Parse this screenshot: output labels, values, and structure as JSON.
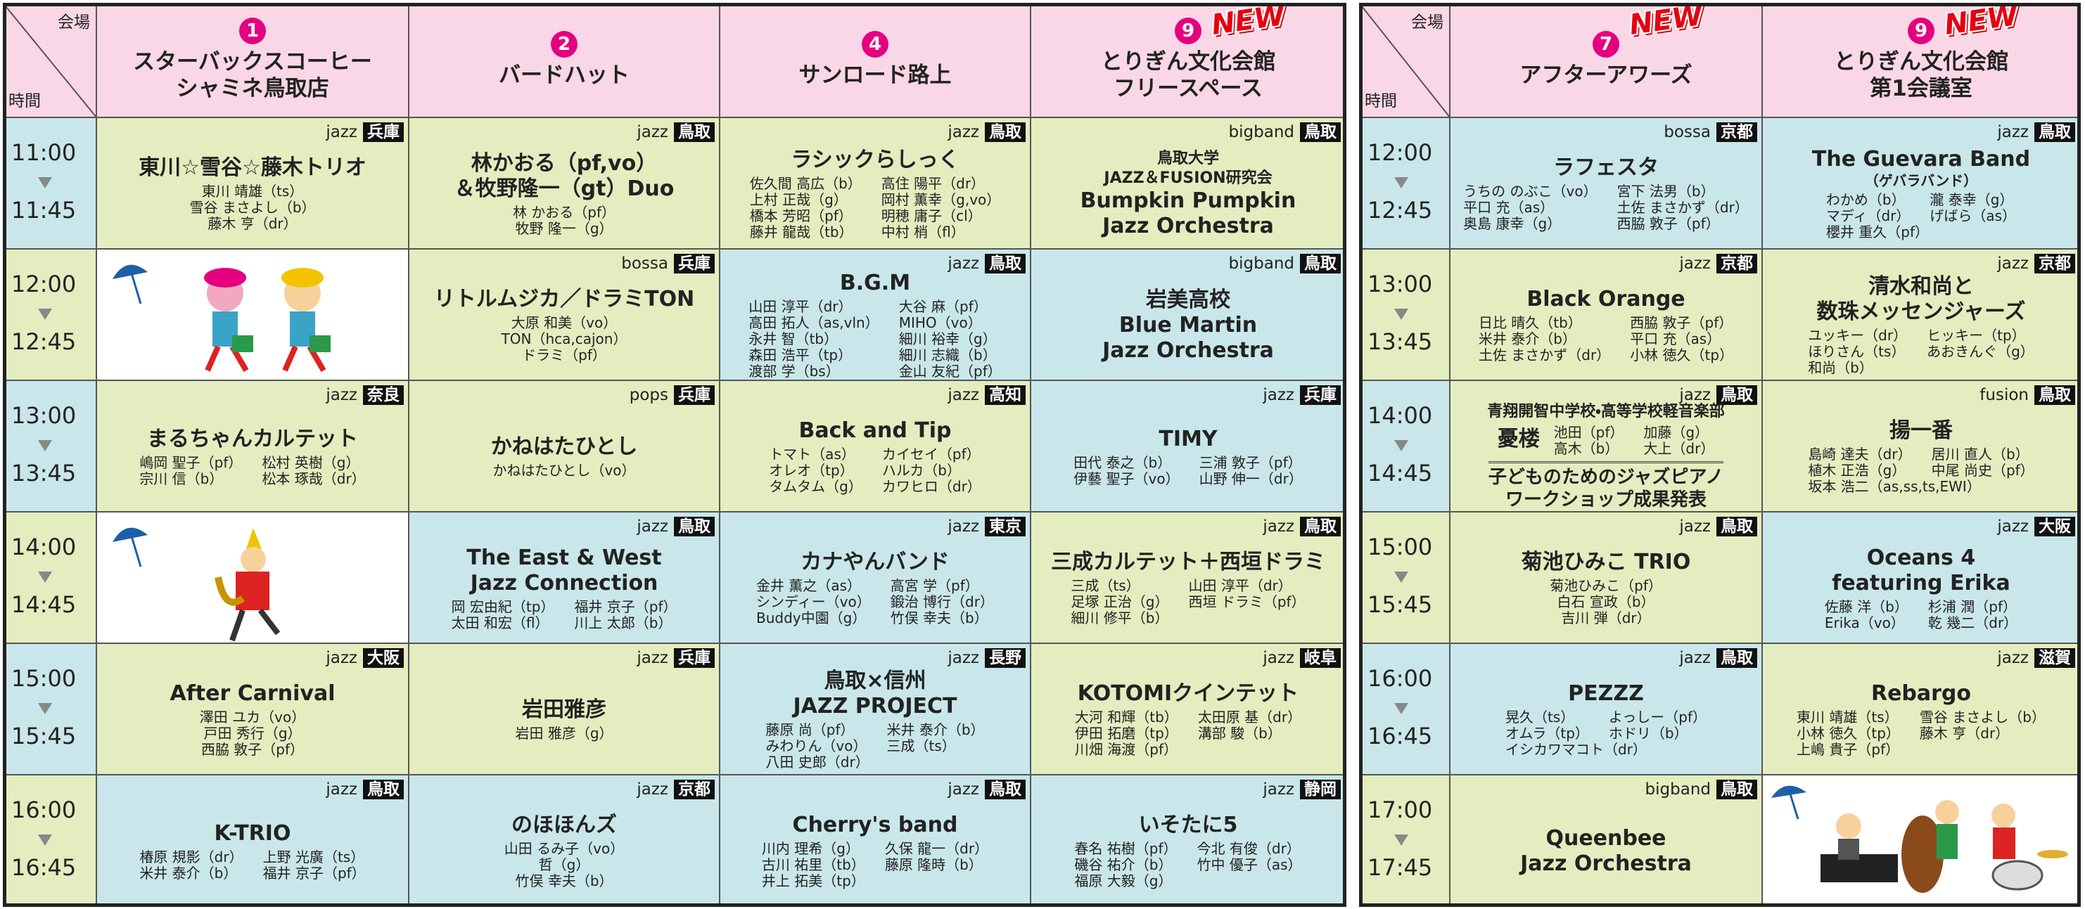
{
  "tables": [
    {
      "corner": {
        "venue": "会場",
        "time": "時間"
      },
      "venues": [
        {
          "number": "1",
          "name": [
            "スターバックスコーヒー",
            "シャミネ鳥取店"
          ]
        },
        {
          "number": "2",
          "name": [
            "バードハット"
          ]
        },
        {
          "number": "4",
          "name": [
            "サンロード路上"
          ]
        },
        {
          "number": "9",
          "name": [
            "とりぎん文化会館",
            "フリースペース"
          ],
          "new": "NEW"
        }
      ],
      "rows": [
        {
          "start": "11:00",
          "end": "11:45",
          "cells": [
            {
              "bg": "#e4edbf",
              "genre": "jazz",
              "pref": "兵庫",
              "title": [
                "東川☆雪谷☆藤木トリオ"
              ],
              "members": [
                [
                  "東川 靖雄（ts）"
                ],
                [
                  "雪谷 まさよし（b）"
                ],
                [
                  "藤木 亨（dr）"
                ]
              ]
            },
            {
              "bg": "#e4edbf",
              "genre": "jazz",
              "pref": "鳥取",
              "title": [
                "林かおる（pf,vo）",
                "＆牧野隆一（gt）Duo"
              ],
              "members": [
                [
                  "林 かおる（pf）"
                ],
                [
                  "牧野 隆一（g）"
                ]
              ]
            },
            {
              "bg": "#e4edbf",
              "genre": "jazz",
              "pref": "鳥取",
              "title": [
                "ラシックらしっく"
              ],
              "members": [
                [
                  "佐久間 高広（b）",
                  "高住 陽平（dr）"
                ],
                [
                  "上村 正哉（g）",
                  "岡村 薫幸（g,vo）"
                ],
                [
                  "橋本 芳昭（pf）",
                  "明穂 庸子（cl）"
                ],
                [
                  "藤井 龍哉（tb）",
                  "中村 梢（fl）"
                ]
              ]
            },
            {
              "bg": "#e4edbf",
              "genre": "bigband",
              "pref": "鳥取",
              "pre": [
                "鳥取大学",
                "JAZZ＆FUSION研究会"
              ],
              "title": [
                "Bumpkin Pumpkin",
                "Jazz Orchestra"
              ]
            }
          ]
        },
        {
          "start": "12:00",
          "end": "12:45",
          "cells": [
            null,
            {
              "bg": "#e4edbf",
              "genre": "bossa",
              "pref": "兵庫",
              "title": [
                "リトルムジカ／ドラミTON"
              ],
              "members": [
                [
                  "大原 和美（vo）"
                ],
                [
                  "TON（hca,cajon）"
                ],
                [
                  "ドラミ（pf）"
                ]
              ]
            },
            {
              "bg": "#c9e7ea",
              "genre": "jazz",
              "pref": "鳥取",
              "title": [
                "B.G.M"
              ],
              "members": [
                [
                  "山田 淳平（dr）",
                  "大谷 麻（pf）"
                ],
                [
                  "高田 拓人（as,vln）",
                  "MIHO（vo）"
                ],
                [
                  "永井 智（tb）",
                  "細川 裕幸（g）"
                ],
                [
                  "森田 浩平（tp）",
                  "細川 志織（b）"
                ],
                [
                  "渡部 学（bs）",
                  "金山 友紀（pf）"
                ]
              ]
            },
            {
              "bg": "#c9e7ea",
              "genre": "bigband",
              "pref": "鳥取",
              "title": [
                "岩美高校",
                "Blue Martin",
                "Jazz Orchestra"
              ]
            }
          ]
        },
        {
          "start": "13:00",
          "end": "13:45",
          "cells": [
            {
              "bg": "#e4edbf",
              "genre": "jazz",
              "pref": "奈良",
              "title": [
                "まるちゃんカルテット"
              ],
              "members": [
                [
                  "嶋岡 聖子（pf）",
                  "松村 英樹（g）"
                ],
                [
                  "宗川 信（b）",
                  "松本 琢哉（dr）"
                ]
              ]
            },
            {
              "bg": "#e4edbf",
              "genre": "pops",
              "pref": "兵庫",
              "title": [
                "かねはたひとし"
              ],
              "members": [
                [
                  "かねはたひとし（vo）"
                ]
              ]
            },
            {
              "bg": "#e4edbf",
              "genre": "jazz",
              "pref": "高知",
              "title": [
                "Back and Tip"
              ],
              "members": [
                [
                  "トマト（as）",
                  "カイセイ（pf）"
                ],
                [
                  "オレオ（tp）",
                  "ハルカ（b）"
                ],
                [
                  "タムタム（g）",
                  "カワヒロ（dr）"
                ]
              ]
            },
            {
              "bg": "#c9e7ea",
              "genre": "jazz",
              "pref": "兵庫",
              "title": [
                "TIMY"
              ],
              "members": [
                [
                  "田代 泰之（b）",
                  "三浦 敦子（pf）"
                ],
                [
                  "伊藝 聖子（vo）",
                  "山野 伸一（dr）"
                ]
              ]
            }
          ]
        },
        {
          "start": "14:00",
          "end": "14:45",
          "cells": [
            null,
            {
              "bg": "#c9e7ea",
              "genre": "jazz",
              "pref": "鳥取",
              "title": [
                "The East & West",
                "Jazz Connection"
              ],
              "members": [
                [
                  "岡 宏由紀（tp）",
                  "福井 京子（pf）"
                ],
                [
                  "太田 和宏（fl）",
                  "川上 太郎（b）"
                ]
              ]
            },
            {
              "bg": "#c9e7ea",
              "genre": "jazz",
              "pref": "東京",
              "title": [
                "カナやんバンド"
              ],
              "members": [
                [
                  "金井 薫之（as）",
                  "高宮 学（pf）"
                ],
                [
                  "シンディー（vo）",
                  "鍛治 博行（dr）"
                ],
                [
                  "Buddy中園（g）",
                  "竹俣 幸夫（b）"
                ]
              ]
            },
            {
              "bg": "#e4edbf",
              "genre": "jazz",
              "pref": "鳥取",
              "title": [
                "三成カルテット＋西垣ドラミ"
              ],
              "members": [
                [
                  "三成（ts）",
                  "山田 淳平（dr）"
                ],
                [
                  "足塚 正治（g）",
                  "西垣 ドラミ（pf）"
                ],
                [
                  "細川 修平（b）"
                ]
              ]
            }
          ]
        },
        {
          "start": "15:00",
          "end": "15:45",
          "cells": [
            {
              "bg": "#e4edbf",
              "genre": "jazz",
              "pref": "大阪",
              "title": [
                "After Carnival"
              ],
              "members": [
                [
                  "澤田 ユカ（vo）"
                ],
                [
                  "戸田 秀行（g）"
                ],
                [
                  "西脇 敦子（pf）"
                ]
              ]
            },
            {
              "bg": "#e4edbf",
              "genre": "jazz",
              "pref": "兵庫",
              "title": [
                "岩田雅彦"
              ],
              "members": [
                [
                  "岩田 雅彦（g）"
                ]
              ]
            },
            {
              "bg": "#c9e7ea",
              "genre": "jazz",
              "pref": "長野",
              "title": [
                "鳥取×信州",
                "JAZZ PROJECT"
              ],
              "members": [
                [
                  "藤原 尚（pf）",
                  "米井 泰介（b）"
                ],
                [
                  "みわりん（vo）",
                  "三成（ts）"
                ],
                [
                  "八田 史郎（dr）"
                ]
              ]
            },
            {
              "bg": "#e4edbf",
              "genre": "jazz",
              "pref": "岐阜",
              "title": [
                "KOTOMIクインテット"
              ],
              "members": [
                [
                  "大河 和輝（tb）",
                  "太田原 基（dr）"
                ],
                [
                  "伊田 拓磨（tp）",
                  "溝部 駿（b）"
                ],
                [
                  "川畑 海渡（pf）"
                ]
              ]
            }
          ]
        },
        {
          "start": "16:00",
          "end": "16:45",
          "cells": [
            {
              "bg": "#c9e7ea",
              "genre": "jazz",
              "pref": "鳥取",
              "title": [
                "K-TRIO"
              ],
              "members": [
                [
                  "椿原 規影（dr）",
                  "上野 光廣（ts）"
                ],
                [
                  "米井 泰介（b）",
                  "福井 京子（pf）"
                ]
              ]
            },
            {
              "bg": "#c9e7ea",
              "genre": "jazz",
              "pref": "京都",
              "title": [
                "のほほんズ"
              ],
              "members": [
                [
                  "山田 るみ子（vo）"
                ],
                [
                  "哲（g）"
                ],
                [
                  "竹俣 幸夫（b）"
                ]
              ]
            },
            {
              "bg": "#c9e7ea",
              "genre": "jazz",
              "pref": "鳥取",
              "title": [
                "Cherry's band"
              ],
              "members": [
                [
                  "川内 理希（g）",
                  "久保 龍一（dr）"
                ],
                [
                  "古川 祐里（tb）",
                  "藤原 隆時（b）"
                ],
                [
                  "井上 拓美（tp）"
                ]
              ]
            },
            {
              "bg": "#c9e7ea",
              "genre": "jazz",
              "pref": "静岡",
              "title": [
                "いそたに5"
              ],
              "members": [
                [
                  "春名 祐樹（pf）",
                  "今北 有俊（dr）"
                ],
                [
                  "磯谷 祐介（b）",
                  "竹中 優子（as）"
                ],
                [
                  "福原 大毅（g）"
                ]
              ]
            }
          ]
        }
      ]
    },
    {
      "corner": {
        "venue": "会場",
        "time": "時間"
      },
      "venues": [
        {
          "number": "7",
          "name": [
            "アフターアワーズ"
          ],
          "new": "NEW"
        },
        {
          "number": "9",
          "name": [
            "とりぎん文化会館",
            "第1会議室"
          ],
          "new": "NEW"
        }
      ],
      "rows": [
        {
          "start": "12:00",
          "end": "12:45",
          "cells": [
            {
              "bg": "#c9e7ea",
              "genre": "bossa",
              "pref": "京都",
              "title": [
                "ラフェスタ"
              ],
              "members": [
                [
                  "うちの のぶこ（vo）",
                  "宮下 法男（b）"
                ],
                [
                  "平口 充（as）",
                  "土佐 まさかず（dr）"
                ],
                [
                  "奥島 康幸（g）",
                  "西脇 敦子（pf）"
                ]
              ]
            },
            {
              "bg": "#c9e7ea",
              "genre": "jazz",
              "pref": "鳥取",
              "title": [
                "The Guevara Band"
              ],
              "sub": "（ゲバラバンド）",
              "members": [
                [
                  "わかめ（b）",
                  "瀧 泰幸（g）"
                ],
                [
                  "マディ（dr）",
                  "げばら（as）"
                ],
                [
                  "櫻井 重久（pf）"
                ]
              ]
            }
          ]
        },
        {
          "start": "13:00",
          "end": "13:45",
          "cells": [
            {
              "bg": "#e4edbf",
              "genre": "jazz",
              "pref": "京都",
              "title": [
                "Black Orange"
              ],
              "members": [
                [
                  "日比 晴久（tb）",
                  "西脇 敦子（pf）"
                ],
                [
                  "米井 泰介（b）",
                  "平口 充（as）"
                ],
                [
                  "土佐 まさかず（dr）",
                  "小林 徳久（tp）"
                ]
              ]
            },
            {
              "bg": "#e4edbf",
              "genre": "jazz",
              "pref": "京都",
              "title": [
                "清水和尚と",
                "数珠メッセンジャーズ"
              ],
              "members": [
                [
                  "ユッキー（dr）",
                  "ヒッキー（tp）"
                ],
                [
                  "ほりさん（ts）",
                  "あおきんぐ（g）"
                ],
                [
                  "和尚（b）"
                ]
              ]
            }
          ]
        },
        {
          "start": "14:00",
          "end": "14:45",
          "cells": [
            {
              "bg": "#e4edbf",
              "genre": "jazz",
              "pref": "鳥取",
              "pre": [
                "青翔開智中学校・高等学校軽音楽部"
              ],
              "title": [
                "憂楼"
              ],
              "members": [
                [
                  "池田（pf）",
                  "加藤（g）"
                ],
                [
                  "高木（b）",
                  "大上（dr）"
                ]
              ],
              "post": [
                "子どものためのジャズピアノ",
                "ワークショップ成果発表"
              ]
            },
            {
              "bg": "#e4edbf",
              "genre": "fusion",
              "pref": "鳥取",
              "title": [
                "揚一番"
              ],
              "members": [
                [
                  "島崎 達夫（dr）",
                  "居川 直人（b）"
                ],
                [
                  "植木 正浩（g）",
                  "中尾 尚史（pf）"
                ],
                [
                  "坂本 浩二（as,ss,ts,EWI）"
                ]
              ]
            }
          ]
        },
        {
          "start": "15:00",
          "end": "15:45",
          "cells": [
            {
              "bg": "#e4edbf",
              "genre": "jazz",
              "pref": "鳥取",
              "title": [
                "菊池ひみこ TRIO"
              ],
              "members": [
                [
                  "菊池ひみこ（pf）"
                ],
                [
                  "白石 宣政（b）"
                ],
                [
                  "吉川 弾（dr）"
                ]
              ]
            },
            {
              "bg": "#c9e7ea",
              "genre": "jazz",
              "pref": "大阪",
              "title": [
                "Oceans 4",
                "featuring Erika"
              ],
              "members": [
                [
                  "佐藤 洋（b）",
                  "杉浦 潤（pf）"
                ],
                [
                  "Erika（vo）",
                  "乾 幾二（dr）"
                ]
              ]
            }
          ]
        },
        {
          "start": "16:00",
          "end": "16:45",
          "cells": [
            {
              "bg": "#c9e7ea",
              "genre": "jazz",
              "pref": "鳥取",
              "title": [
                "PEZZZ"
              ],
              "members": [
                [
                  "晃久（ts）",
                  "よっしー（pf）"
                ],
                [
                  "オムラ（tp）",
                  "ホドリ（b）"
                ],
                [
                  "イシカワマコト（dr）"
                ]
              ]
            },
            {
              "bg": "#e4edbf",
              "genre": "jazz",
              "pref": "滋賀",
              "title": [
                "Rebargo"
              ],
              "members": [
                [
                  "東川 靖雄（ts）",
                  "雪谷 まさよし（b）"
                ],
                [
                  "小林 徳久（tp）",
                  "藤木 亨（dr）"
                ],
                [
                  "上嶋 貴子（pf）"
                ]
              ]
            }
          ]
        },
        {
          "start": "17:00",
          "end": "17:45",
          "cells": [
            {
              "bg": "#e4edbf",
              "genre": "bigband",
              "pref": "鳥取",
              "title": [
                "Queenbee",
                "Jazz Orchestra"
              ]
            },
            null
          ]
        }
      ]
    }
  ]
}
